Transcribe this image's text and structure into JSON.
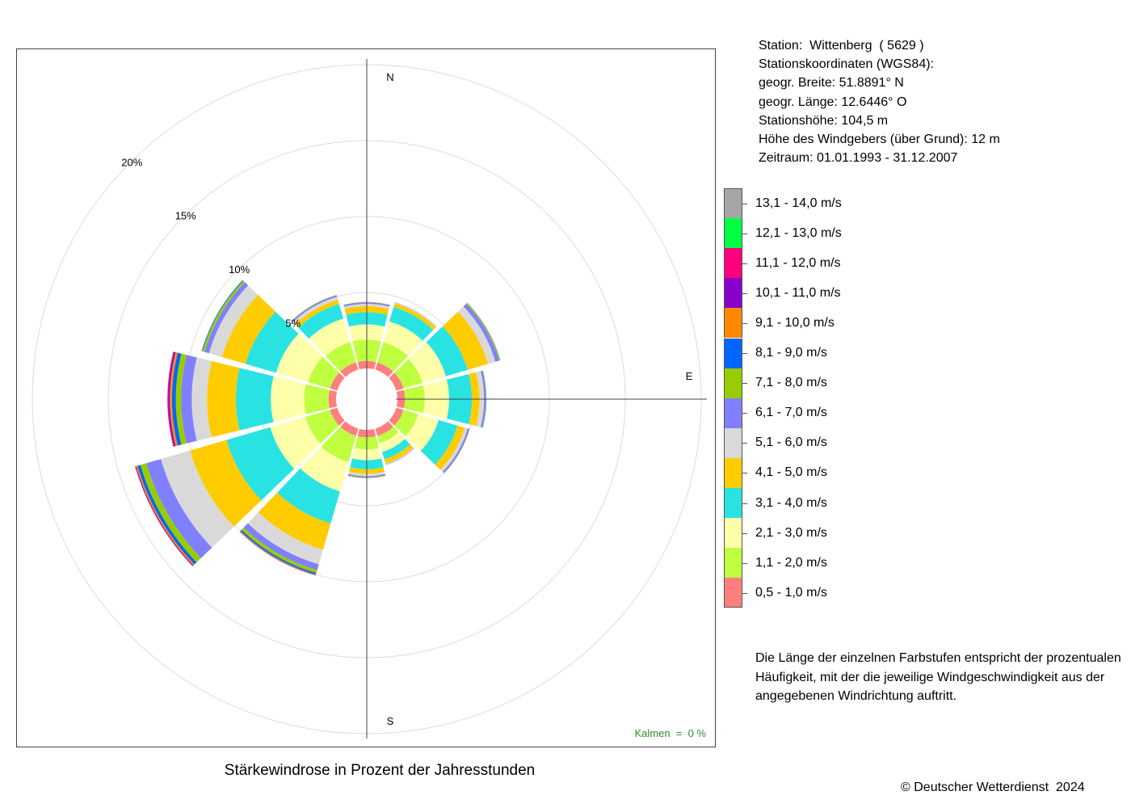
{
  "title": "Stärkewindrose in Prozent der Jahresstunden",
  "station": {
    "lines": [
      "Station:  Wittenberg  ( 5629 )",
      "Stationskoordinaten (WGS84):",
      "geogr. Breite: 51.8891° N",
      "geogr. Länge: 12.6446° O",
      "Stationshöhe: 104,5 m",
      "Höhe des Windgebers (über Grund): 12 m",
      "Zeitraum: 01.01.1993 - 31.12.2007"
    ]
  },
  "calm_label": "Kalmen  =  0 %",
  "explanation": "Die Länge der einzelnen Farbstufen entspricht der prozentualen Häufigkeit, mit der die jeweilige Windgeschwindigkeit aus der angegebenen Windrichtung auftritt.",
  "copyright": "© Deutscher Wetterdienst  2024",
  "compass": {
    "north": "N",
    "east": "E",
    "south": "S"
  },
  "chart_data": {
    "type": "wind-rose",
    "title": "Stärkewindrose in Prozent der Jahresstunden",
    "unit": "%",
    "ring_ticks": [
      5,
      10,
      15,
      20
    ],
    "ring_labels": [
      "5%",
      "10%",
      "15%",
      "20%"
    ],
    "directions_deg": [
      0,
      30,
      60,
      90,
      120,
      150,
      180,
      210,
      240,
      270,
      300,
      330
    ],
    "speed_classes": [
      {
        "label": "0,5 - 1,0 m/s",
        "color": "#ff7f7f"
      },
      {
        "label": "1,1 - 2,0 m/s",
        "color": "#bfff3f"
      },
      {
        "label": "2,1 - 3,0 m/s",
        "color": "#ffffaa"
      },
      {
        "label": "3,1 - 4,0 m/s",
        "color": "#29e3e3"
      },
      {
        "label": "4,1 - 5,0 m/s",
        "color": "#ffcc00"
      },
      {
        "label": "5,1 - 6,0 m/s",
        "color": "#d9d9d9"
      },
      {
        "label": "6,1 - 7,0 m/s",
        "color": "#8080ff"
      },
      {
        "label": "7,1 - 8,0 m/s",
        "color": "#99cc00"
      },
      {
        "label": "8,1 - 9,0 m/s",
        "color": "#0066ff"
      },
      {
        "label": "9,1 - 10,0 m/s",
        "color": "#ff8800"
      },
      {
        "label": "10,1 - 11,0 m/s",
        "color": "#8800cc"
      },
      {
        "label": "11,1 - 12,0 m/s",
        "color": "#ff0080"
      },
      {
        "label": "12,1 - 13,0 m/s",
        "color": "#00ff44"
      },
      {
        "label": "13,1 - 14,0 m/s",
        "color": "#a6a6a6"
      }
    ],
    "series": [
      {
        "direction": 0,
        "values": [
          0.5,
          1.4,
          1.0,
          0.8,
          0.4,
          0.15,
          0.1,
          0.03,
          0,
          0,
          0,
          0,
          0,
          0
        ]
      },
      {
        "direction": 30,
        "values": [
          0.5,
          1.4,
          1.4,
          1.0,
          0.25,
          0.05,
          0.02,
          0,
          0,
          0,
          0,
          0,
          0,
          0
        ]
      },
      {
        "direction": 60,
        "values": [
          0.5,
          1.3,
          1.6,
          1.5,
          1.4,
          0.5,
          0.25,
          0.07,
          0.02,
          0,
          0,
          0,
          0,
          0
        ]
      },
      {
        "direction": 90,
        "values": [
          0.5,
          1.3,
          1.6,
          1.5,
          0.5,
          0.3,
          0.12,
          0.03,
          0.01,
          0,
          0,
          0,
          0,
          0
        ]
      },
      {
        "direction": 120,
        "values": [
          0.5,
          1.0,
          1.4,
          1.3,
          0.5,
          0.2,
          0.12,
          0.02,
          0,
          0,
          0,
          0,
          0,
          0
        ]
      },
      {
        "direction": 150,
        "values": [
          0.5,
          0.5,
          0.6,
          0.5,
          0.3,
          0.05,
          0.03,
          0,
          0,
          0,
          0,
          0,
          0,
          0
        ]
      },
      {
        "direction": 180,
        "values": [
          0.5,
          0.8,
          0.7,
          0.6,
          0.3,
          0.15,
          0.1,
          0.03,
          0,
          0,
          0,
          0,
          0,
          0
        ]
      },
      {
        "direction": 210,
        "values": [
          0.5,
          1.8,
          2.0,
          2.2,
          1.8,
          1.0,
          0.4,
          0.2,
          0.1,
          0.05,
          0.02,
          0,
          0,
          0
        ]
      },
      {
        "direction": 240,
        "values": [
          0.5,
          1.7,
          2.4,
          3.0,
          2.5,
          2.0,
          1.0,
          0.4,
          0.2,
          0.1,
          0.05,
          0.02,
          0,
          0
        ]
      },
      {
        "direction": 270,
        "values": [
          0.5,
          1.6,
          2.2,
          2.3,
          1.9,
          1.0,
          0.7,
          0.35,
          0.25,
          0.15,
          0.1,
          0.05,
          0,
          0
        ]
      },
      {
        "direction": 300,
        "values": [
          0.5,
          1.5,
          2.2,
          2.1,
          1.6,
          0.9,
          0.3,
          0.15,
          0.05,
          0,
          0,
          0,
          0,
          0
        ]
      },
      {
        "direction": 330,
        "values": [
          0.5,
          1.4,
          1.6,
          1.0,
          0.3,
          0.2,
          0.1,
          0.03,
          0,
          0,
          0,
          0,
          0,
          0
        ]
      }
    ]
  }
}
